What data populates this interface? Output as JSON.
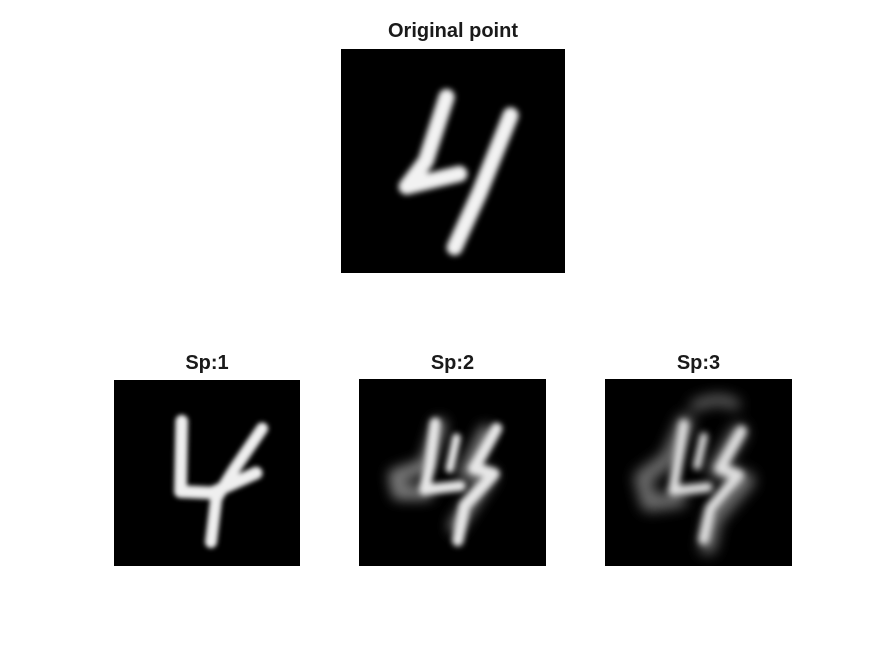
{
  "figure": {
    "panels": [
      {
        "title": "Original point",
        "image": "digit-four-grayscale"
      },
      {
        "title": "Sp:1",
        "image": "digit-four-grayscale"
      },
      {
        "title": "Sp:2",
        "image": "digit-four-blurred-grayscale"
      },
      {
        "title": "Sp:3",
        "image": "digit-four-blurred-grayscale"
      }
    ]
  }
}
